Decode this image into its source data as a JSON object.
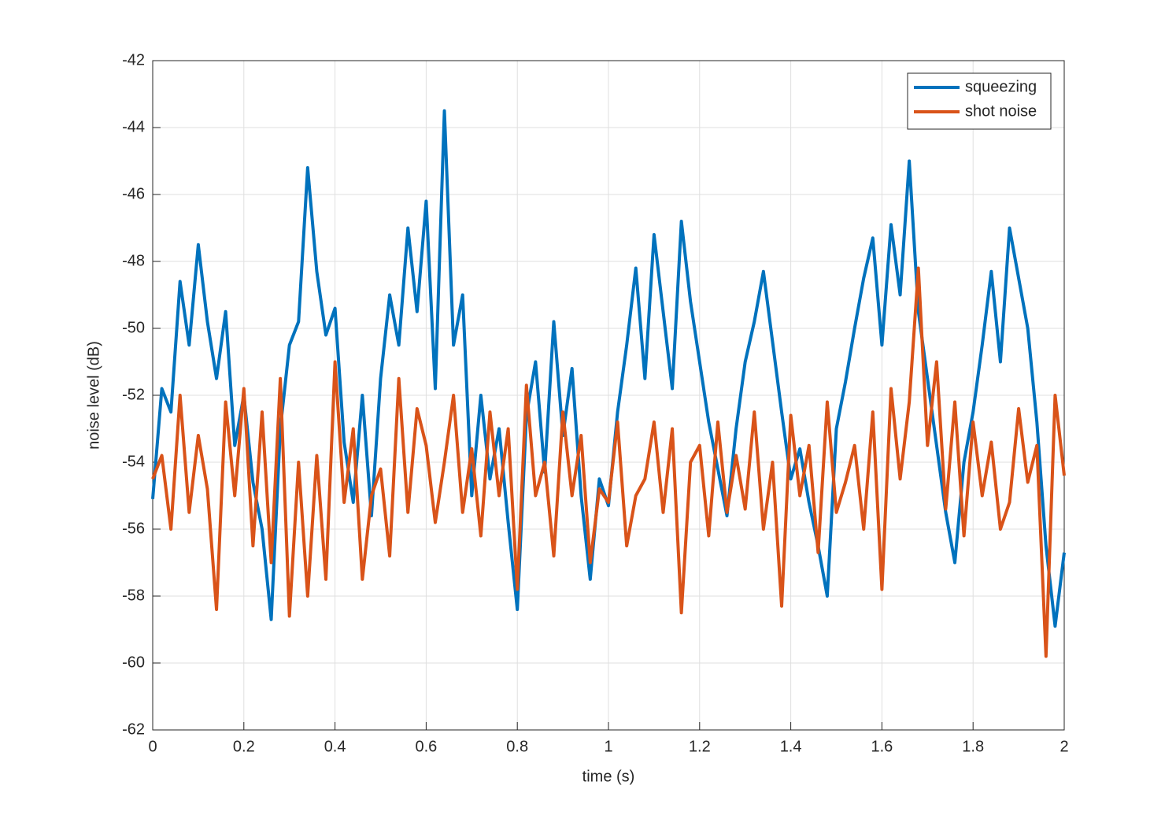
{
  "chart_data": {
    "type": "line",
    "x_label": "time (s)",
    "y_label": "noise level (dB)",
    "x": [
      0,
      0.02,
      0.04,
      0.06,
      0.08,
      0.1,
      0.12,
      0.14,
      0.16,
      0.18,
      0.2,
      0.22,
      0.24,
      0.26,
      0.28,
      0.3,
      0.32,
      0.34,
      0.36,
      0.38,
      0.4,
      0.42,
      0.44,
      0.46,
      0.48,
      0.5,
      0.52,
      0.54,
      0.56,
      0.58,
      0.6,
      0.62,
      0.64,
      0.66,
      0.68,
      0.7,
      0.72,
      0.74,
      0.76,
      0.78,
      0.8,
      0.82,
      0.84,
      0.86,
      0.88,
      0.9,
      0.92,
      0.94,
      0.96,
      0.98,
      1,
      1.02,
      1.04,
      1.06,
      1.08,
      1.1,
      1.12,
      1.14,
      1.16,
      1.18,
      1.2,
      1.22,
      1.24,
      1.26,
      1.28,
      1.3,
      1.32,
      1.34,
      1.36,
      1.38,
      1.4,
      1.42,
      1.44,
      1.46,
      1.48,
      1.5,
      1.52,
      1.54,
      1.56,
      1.58,
      1.6,
      1.62,
      1.64,
      1.66,
      1.68,
      1.7,
      1.72,
      1.74,
      1.76,
      1.78,
      1.8,
      1.82,
      1.84,
      1.86,
      1.88,
      1.9,
      1.92,
      1.94,
      1.96,
      1.98,
      2
    ],
    "series": [
      {
        "name": "squeezing",
        "color": "#0072bd",
        "values": [
          -55.1,
          -51.8,
          -52.5,
          -48.6,
          -50.5,
          -47.5,
          -49.8,
          -51.5,
          -49.5,
          -53.5,
          -52.0,
          -54.6,
          -56.0,
          -58.7,
          -53.0,
          -50.5,
          -49.8,
          -45.2,
          -48.3,
          -50.2,
          -49.4,
          -53.4,
          -55.2,
          -52.0,
          -55.6,
          -51.5,
          -49.0,
          -50.5,
          -47.0,
          -49.5,
          -46.2,
          -51.8,
          -43.5,
          -50.5,
          -49.0,
          -55.0,
          -52.0,
          -54.5,
          -53.0,
          -55.8,
          -58.4,
          -52.6,
          -51.0,
          -54.3,
          -49.8,
          -53.2,
          -51.2,
          -55.0,
          -57.5,
          -54.5,
          -55.3,
          -52.5,
          -50.5,
          -48.2,
          -51.5,
          -47.2,
          -49.5,
          -51.8,
          -46.8,
          -49.2,
          -51.0,
          -52.8,
          -54.2,
          -55.6,
          -53.0,
          -51.0,
          -49.8,
          -48.3,
          -50.4,
          -52.5,
          -54.5,
          -53.6,
          -55.2,
          -56.5,
          -58.0,
          -53.0,
          -51.6,
          -50.0,
          -48.5,
          -47.3,
          -50.5,
          -46.9,
          -49.0,
          -45.0,
          -49.5,
          -51.5,
          -53.5,
          -55.5,
          -57.0,
          -54.0,
          -52.5,
          -50.5,
          -48.3,
          -51.0,
          -47.0,
          -48.5,
          -50.0,
          -52.8,
          -56.5,
          -58.9,
          -56.7
        ]
      },
      {
        "name": "shot noise",
        "color": "#d95319",
        "values": [
          -54.5,
          -53.8,
          -56.0,
          -52.0,
          -55.5,
          -53.2,
          -54.8,
          -58.4,
          -52.2,
          -55.0,
          -51.8,
          -56.5,
          -52.5,
          -57.0,
          -51.5,
          -58.6,
          -54.0,
          -58.0,
          -53.8,
          -57.5,
          -51.0,
          -55.2,
          -53.0,
          -57.5,
          -55.0,
          -54.2,
          -56.8,
          -51.5,
          -55.5,
          -52.4,
          -53.5,
          -55.8,
          -54.0,
          -52.0,
          -55.5,
          -53.6,
          -56.2,
          -52.5,
          -55.0,
          -53.0,
          -57.8,
          -51.7,
          -55.0,
          -54.0,
          -56.8,
          -52.5,
          -55.0,
          -53.2,
          -57.0,
          -54.8,
          -55.2,
          -52.8,
          -56.5,
          -55.0,
          -54.5,
          -52.8,
          -55.5,
          -53.0,
          -58.5,
          -54.0,
          -53.5,
          -56.2,
          -52.8,
          -55.5,
          -53.8,
          -55.4,
          -52.5,
          -56.0,
          -54.0,
          -58.3,
          -52.6,
          -55.0,
          -53.5,
          -56.7,
          -52.2,
          -55.5,
          -54.6,
          -53.5,
          -56.0,
          -52.5,
          -57.8,
          -51.8,
          -54.5,
          -52.2,
          -48.2,
          -53.5,
          -51.0,
          -55.4,
          -52.2,
          -56.2,
          -52.8,
          -55.0,
          -53.4,
          -56.0,
          -55.2,
          -52.4,
          -54.6,
          -53.5,
          -59.8,
          -52.0,
          -54.4
        ]
      }
    ],
    "xlim": [
      0,
      2
    ],
    "xticks": [
      0,
      0.2,
      0.4,
      0.6,
      0.8,
      1,
      1.2,
      1.4,
      1.6,
      1.8,
      2
    ],
    "ylim": [
      -62,
      -42
    ],
    "yticks": [
      -62,
      -60,
      -58,
      -56,
      -54,
      -52,
      -50,
      -48,
      -46,
      -44,
      -42
    ],
    "grid": true,
    "legend": "northeast"
  }
}
